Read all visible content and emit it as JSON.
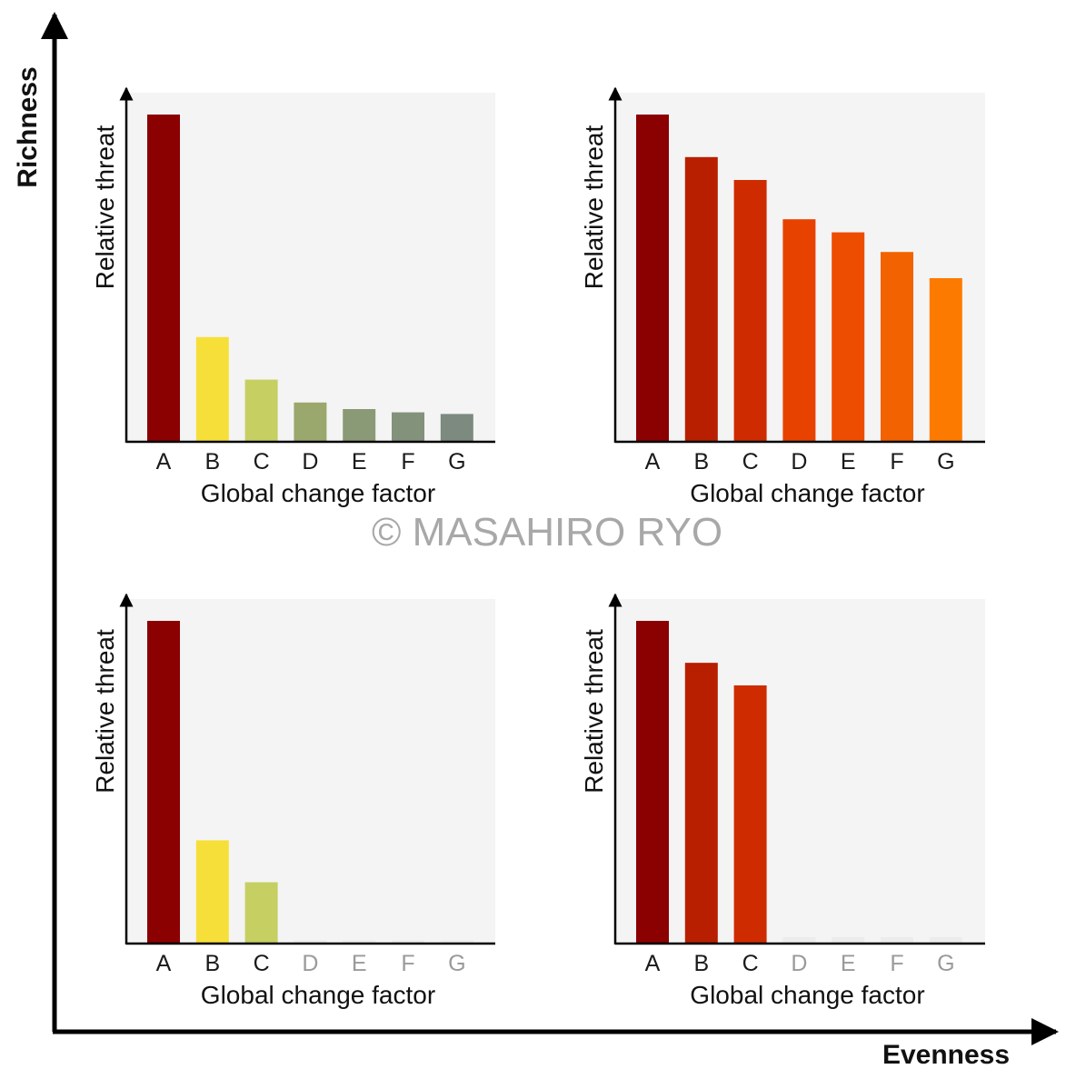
{
  "outer_axes": {
    "ylabel": "Richness",
    "xlabel": "Evenness"
  },
  "watermark": "© MASAHIRO RYO",
  "colors": {
    "panel_bg": "#f4f4f4",
    "axis": "#000000",
    "faded_tick": "#9a9a9a"
  },
  "chart_data": [
    {
      "type": "bar",
      "position": "top-left",
      "xlabel": "Global change factor",
      "ylabel": "Relative threat",
      "categories": [
        "A",
        "B",
        "C",
        "D",
        "E",
        "F",
        "G"
      ],
      "values": [
        100,
        32,
        19,
        12,
        10,
        9,
        8.5
      ],
      "colors": [
        "#8b0000",
        "#f7df3a",
        "#c6cf62",
        "#9aa76d",
        "#8b9a76",
        "#83927a",
        "#7c8a80"
      ],
      "faded": [
        false,
        false,
        false,
        false,
        false,
        false,
        false
      ],
      "ylim": [
        0,
        100
      ]
    },
    {
      "type": "bar",
      "position": "top-right",
      "xlabel": "Global change factor",
      "ylabel": "Relative threat",
      "categories": [
        "A",
        "B",
        "C",
        "D",
        "E",
        "F",
        "G"
      ],
      "values": [
        100,
        87,
        80,
        68,
        64,
        58,
        50
      ],
      "colors": [
        "#8b0000",
        "#b81e00",
        "#cf2b00",
        "#e84200",
        "#ec4d00",
        "#f26200",
        "#fd7a00"
      ],
      "faded": [
        false,
        false,
        false,
        false,
        false,
        false,
        false
      ],
      "ylim": [
        0,
        100
      ]
    },
    {
      "type": "bar",
      "position": "bottom-left",
      "xlabel": "Global change factor",
      "ylabel": "Relative threat",
      "categories": [
        "A",
        "B",
        "C",
        "D",
        "E",
        "F",
        "G"
      ],
      "values": [
        100,
        32,
        19,
        1,
        1,
        1,
        1
      ],
      "colors": [
        "#8b0000",
        "#f7df3a",
        "#c6cf62",
        "#ececec",
        "#ececec",
        "#ececec",
        "#ececec"
      ],
      "faded": [
        false,
        false,
        false,
        true,
        true,
        true,
        true
      ],
      "ylim": [
        0,
        100
      ]
    },
    {
      "type": "bar",
      "position": "bottom-right",
      "xlabel": "Global change factor",
      "ylabel": "Relative threat",
      "categories": [
        "A",
        "B",
        "C",
        "D",
        "E",
        "F",
        "G"
      ],
      "values": [
        100,
        87,
        80,
        2,
        2,
        2,
        2
      ],
      "colors": [
        "#8b0000",
        "#b81e00",
        "#cf2b00",
        "#ececec",
        "#ececec",
        "#ececec",
        "#ececec"
      ],
      "faded": [
        false,
        false,
        false,
        true,
        true,
        true,
        true
      ],
      "ylim": [
        0,
        100
      ]
    }
  ]
}
